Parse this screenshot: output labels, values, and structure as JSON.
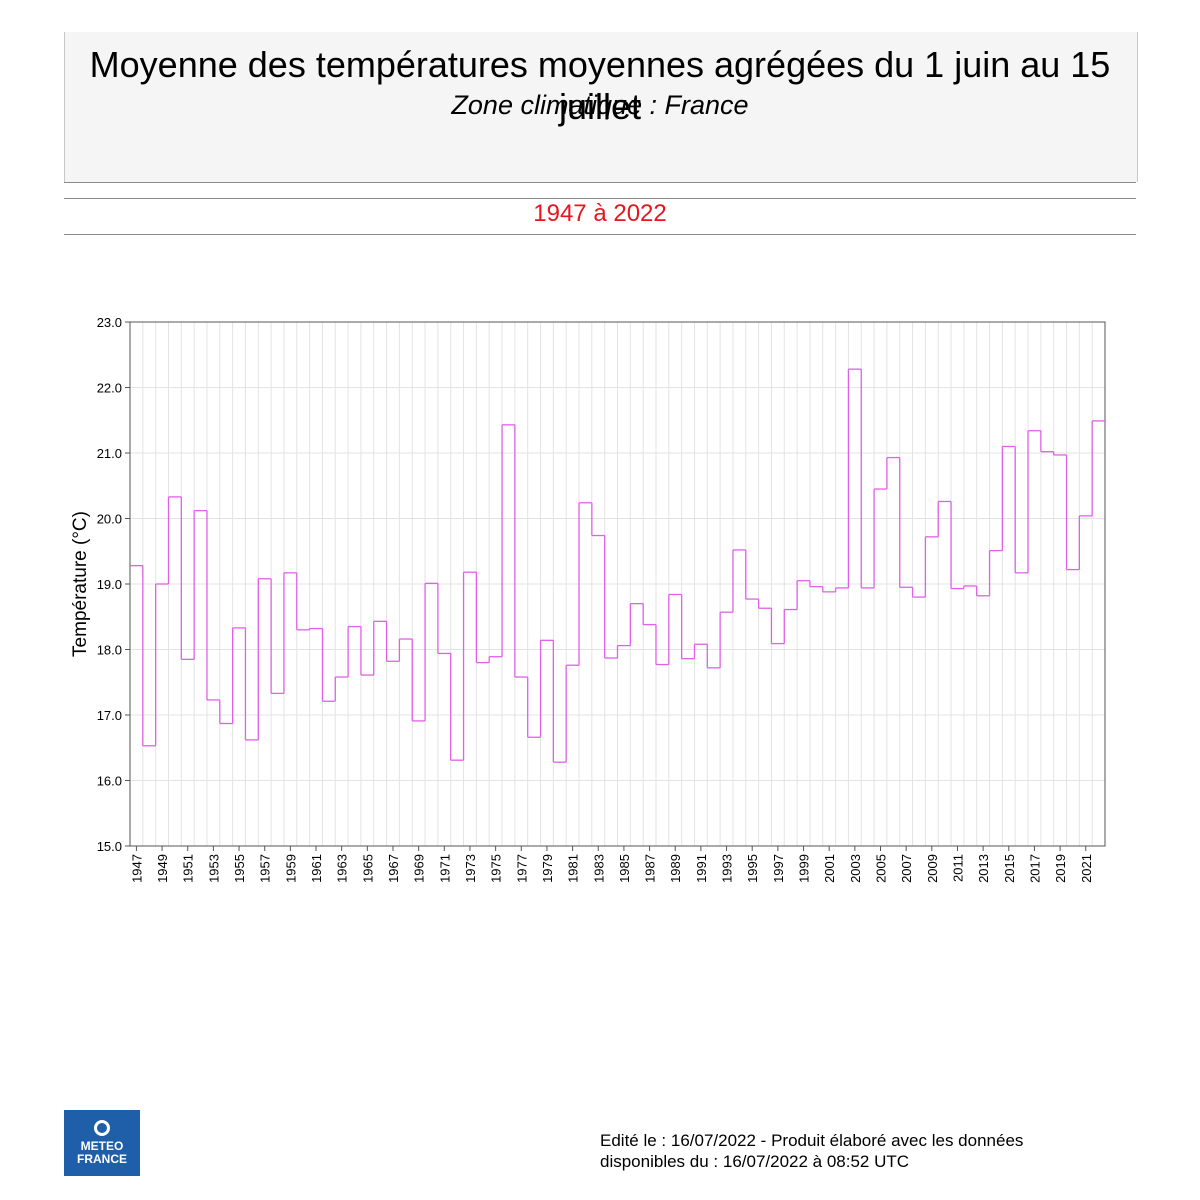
{
  "header": {
    "title": "Moyenne des températures moyennes agrégées du 1 juin au 15 juillet",
    "subtitle": "Zone climatique : France",
    "period": "1947 à 2022"
  },
  "footer": {
    "line1": "Edité le : 16/07/2022 - Produit élaboré avec les données",
    "line2": "disponibles du : 16/07/2022 à 08:52 UTC"
  },
  "logo": {
    "line1": "METEO",
    "line2": "FRANCE",
    "icon": "meteo-france-logo-icon"
  },
  "chart_data": {
    "type": "line",
    "step": true,
    "title": "",
    "xlabel": "",
    "ylabel": "Température (°C)",
    "ylim": [
      15.0,
      23.0
    ],
    "yticks": [
      "15.0",
      "16.0",
      "17.0",
      "18.0",
      "19.0",
      "20.0",
      "21.0",
      "22.0",
      "23.0"
    ],
    "xtick_labels": [
      "1947",
      "1949",
      "1951",
      "1953",
      "1955",
      "1957",
      "1959",
      "1961",
      "1963",
      "1965",
      "1967",
      "1969",
      "1971",
      "1973",
      "1975",
      "1977",
      "1979",
      "1981",
      "1983",
      "1985",
      "1987",
      "1989",
      "1991",
      "1993",
      "1995",
      "1997",
      "1999",
      "2001",
      "2003",
      "2005",
      "2007",
      "2009",
      "2011",
      "2013",
      "2015",
      "2017",
      "2019",
      "2021"
    ],
    "grid": true,
    "color": "#e060e8",
    "x": [
      1947,
      1948,
      1949,
      1950,
      1951,
      1952,
      1953,
      1954,
      1955,
      1956,
      1957,
      1958,
      1959,
      1960,
      1961,
      1962,
      1963,
      1964,
      1965,
      1966,
      1967,
      1968,
      1969,
      1970,
      1971,
      1972,
      1973,
      1974,
      1975,
      1976,
      1977,
      1978,
      1979,
      1980,
      1981,
      1982,
      1983,
      1984,
      1985,
      1986,
      1987,
      1988,
      1989,
      1990,
      1991,
      1992,
      1993,
      1994,
      1995,
      1996,
      1997,
      1998,
      1999,
      2000,
      2001,
      2002,
      2003,
      2004,
      2005,
      2006,
      2007,
      2008,
      2009,
      2010,
      2011,
      2012,
      2013,
      2014,
      2015,
      2016,
      2017,
      2018,
      2019,
      2020,
      2021,
      2022
    ],
    "values": [
      19.28,
      16.53,
      19.0,
      20.33,
      17.85,
      20.12,
      17.23,
      16.87,
      18.33,
      16.62,
      19.08,
      17.33,
      19.17,
      18.3,
      18.32,
      17.21,
      17.58,
      18.35,
      17.61,
      18.43,
      17.82,
      18.16,
      16.91,
      19.01,
      17.94,
      16.31,
      19.18,
      17.8,
      17.89,
      21.43,
      17.58,
      16.66,
      18.14,
      16.28,
      17.76,
      20.24,
      19.74,
      17.87,
      18.06,
      18.7,
      18.38,
      17.77,
      18.84,
      17.86,
      18.08,
      17.72,
      18.57,
      19.52,
      18.77,
      18.63,
      18.09,
      18.61,
      19.05,
      18.96,
      18.88,
      18.94,
      22.28,
      18.94,
      20.45,
      20.93,
      18.95,
      18.8,
      19.72,
      20.26,
      18.93,
      18.97,
      18.82,
      19.51,
      21.1,
      19.17,
      21.34,
      21.02,
      20.97,
      19.22,
      20.04,
      21.49
    ]
  }
}
